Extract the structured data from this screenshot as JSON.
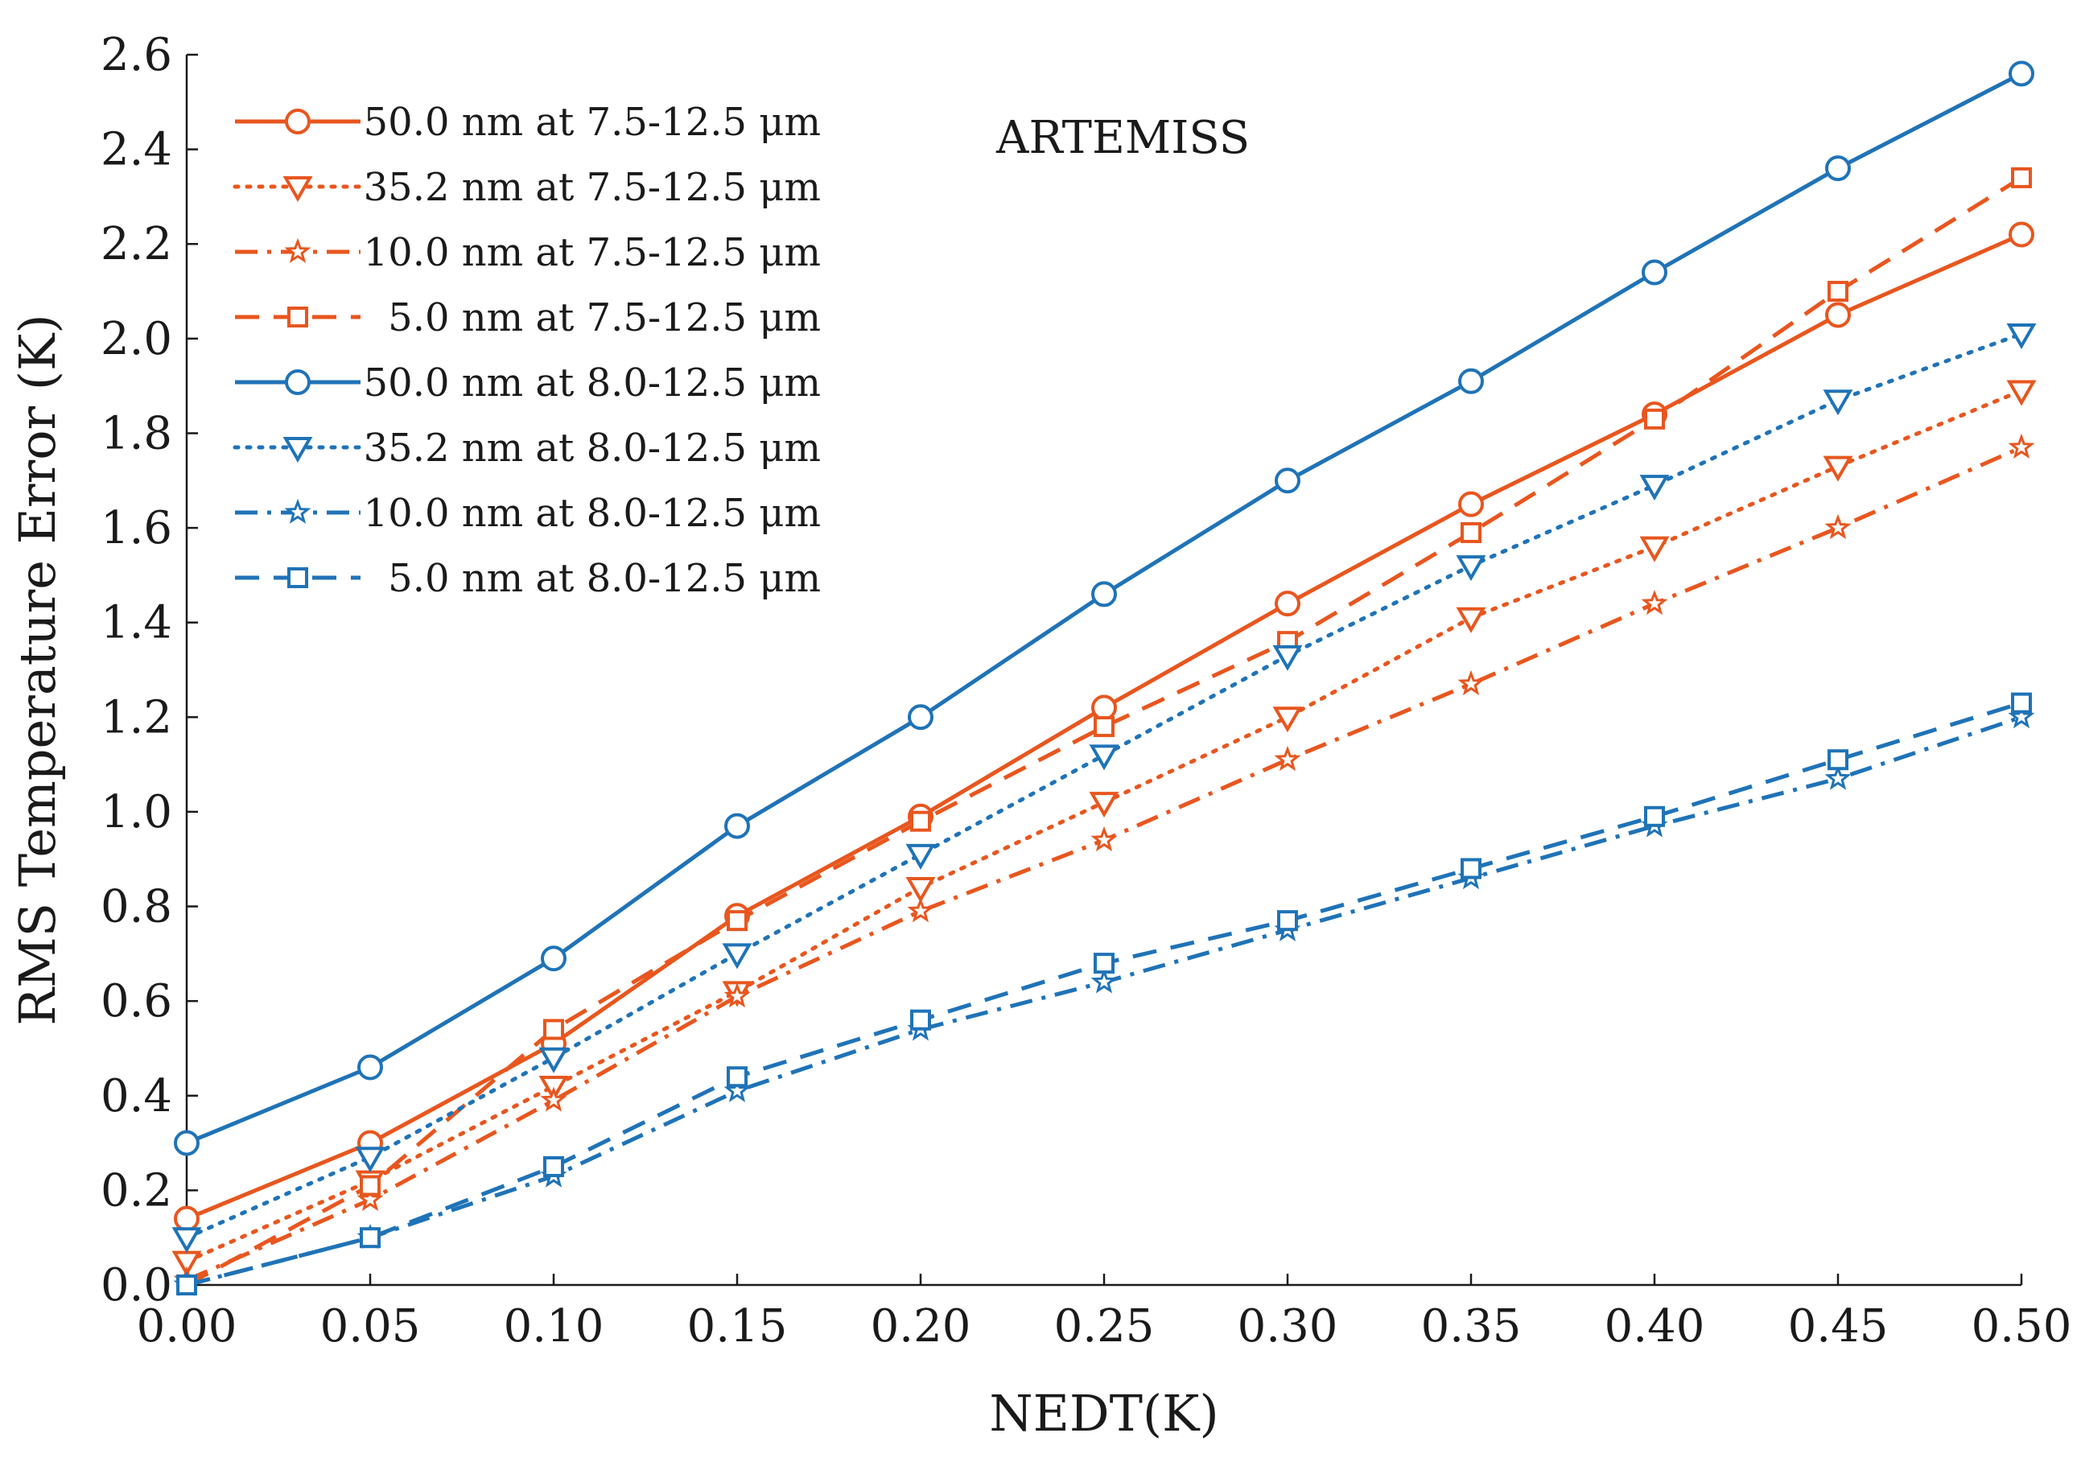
{
  "chart_data": {
    "type": "line",
    "title": "",
    "annotation": "ARTEMISS",
    "xlabel": "NEDT(K)",
    "ylabel": "RMS Temperature Error (K)",
    "xlim": [
      0,
      0.5
    ],
    "ylim": [
      0,
      2.6
    ],
    "x": [
      0.0,
      0.05,
      0.1,
      0.15,
      0.2,
      0.25,
      0.3,
      0.35,
      0.4,
      0.45,
      0.5
    ],
    "x_tick_labels": [
      "0.00",
      "0.05",
      "0.10",
      "0.15",
      "0.20",
      "0.25",
      "0.30",
      "0.35",
      "0.40",
      "0.45",
      "0.50"
    ],
    "y_ticks": [
      0.0,
      0.2,
      0.4,
      0.6,
      0.8,
      1.0,
      1.2,
      1.4,
      1.6,
      1.8,
      2.0,
      2.2,
      2.4,
      2.6
    ],
    "y_tick_labels": [
      "0.0",
      "0.2",
      "0.4",
      "0.6",
      "0.8",
      "1.0",
      "1.2",
      "1.4",
      "1.6",
      "1.8",
      "2.0",
      "2.2",
      "2.4",
      "2.6"
    ],
    "grid": false,
    "legend_position": "top-left",
    "colors": {
      "orange": "#e8561e",
      "blue": "#1f73b7"
    },
    "series": [
      {
        "name": "50.0 nm at 7.5-12.5 μm",
        "color": "#e8561e",
        "line": "solid",
        "marker": "circle",
        "values": [
          0.14,
          0.3,
          0.51,
          0.78,
          0.99,
          1.22,
          1.44,
          1.65,
          1.84,
          2.05,
          2.22
        ]
      },
      {
        "name": "35.2 nm at 7.5-12.5 μm",
        "color": "#e8561e",
        "line": "dotted",
        "marker": "triangle-down",
        "values": [
          0.05,
          0.22,
          0.42,
          0.62,
          0.84,
          1.02,
          1.2,
          1.41,
          1.56,
          1.73,
          1.89
        ]
      },
      {
        "name": "10.0 nm at 7.5-12.5 μm",
        "color": "#e8561e",
        "line": "dashdot",
        "marker": "star",
        "values": [
          0.01,
          0.18,
          0.39,
          0.61,
          0.79,
          0.94,
          1.11,
          1.27,
          1.44,
          1.6,
          1.77
        ]
      },
      {
        "name": "5.0 nm at 7.5-12.5 μm",
        "color": "#e8561e",
        "line": "dashed",
        "marker": "square",
        "values": [
          0.0,
          0.21,
          0.54,
          0.77,
          0.98,
          1.18,
          1.36,
          1.59,
          1.83,
          2.1,
          2.34
        ]
      },
      {
        "name": "50.0 nm at 8.0-12.5 μm",
        "color": "#1f73b7",
        "line": "solid",
        "marker": "circle",
        "values": [
          0.3,
          0.46,
          0.69,
          0.97,
          1.2,
          1.46,
          1.7,
          1.91,
          2.14,
          2.36,
          2.56
        ]
      },
      {
        "name": "35.2 nm at 8.0-12.5 μm",
        "color": "#1f73b7",
        "line": "dotted",
        "marker": "triangle-down",
        "values": [
          0.1,
          0.27,
          0.48,
          0.7,
          0.91,
          1.12,
          1.33,
          1.52,
          1.69,
          1.87,
          2.01
        ]
      },
      {
        "name": "10.0 nm at 8.0-12.5 μm",
        "color": "#1f73b7",
        "line": "dashdot",
        "marker": "star",
        "values": [
          0.0,
          0.1,
          0.23,
          0.41,
          0.54,
          0.64,
          0.75,
          0.86,
          0.97,
          1.07,
          1.2
        ]
      },
      {
        "name": "5.0 nm at 8.0-12.5 μm",
        "color": "#1f73b7",
        "line": "dashed",
        "marker": "square",
        "values": [
          0.0,
          0.1,
          0.25,
          0.44,
          0.56,
          0.68,
          0.77,
          0.88,
          0.99,
          1.11,
          1.23
        ]
      }
    ]
  }
}
